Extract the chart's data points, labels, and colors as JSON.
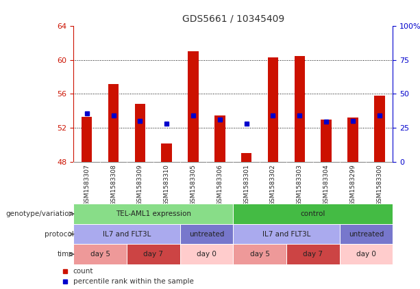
{
  "title": "GDS5661 / 10345409",
  "samples": [
    "GSM1583307",
    "GSM1583308",
    "GSM1583309",
    "GSM1583310",
    "GSM1583305",
    "GSM1583306",
    "GSM1583301",
    "GSM1583302",
    "GSM1583303",
    "GSM1583304",
    "GSM1583299",
    "GSM1583300"
  ],
  "count_values": [
    53.3,
    57.2,
    54.8,
    50.2,
    61.0,
    53.5,
    49.0,
    60.3,
    60.5,
    53.0,
    53.2,
    55.8
  ],
  "percentile_values": [
    53.7,
    53.5,
    52.8,
    52.5,
    53.5,
    53.0,
    52.5,
    53.5,
    53.5,
    52.7,
    52.8,
    53.5
  ],
  "ymin": 48,
  "ymax": 64,
  "yticks": [
    48,
    52,
    56,
    60,
    64
  ],
  "y2ticks": [
    0,
    25,
    50,
    75,
    100
  ],
  "y2tick_labels": [
    "0",
    "25",
    "50",
    "75",
    "100%"
  ],
  "bar_color": "#cc1100",
  "percentile_color": "#0000cc",
  "tick_color_left": "#cc1100",
  "tick_color_right": "#0000cc",
  "xtick_bg": "#cccccc",
  "genotype_groups": [
    {
      "label": "TEL-AML1 expression",
      "start": 0,
      "end": 6,
      "color": "#88dd88"
    },
    {
      "label": "control",
      "start": 6,
      "end": 12,
      "color": "#44bb44"
    }
  ],
  "protocol_groups": [
    {
      "label": "IL7 and FLT3L",
      "start": 0,
      "end": 4,
      "color": "#aaaaee"
    },
    {
      "label": "untreated",
      "start": 4,
      "end": 6,
      "color": "#7777cc"
    },
    {
      "label": "IL7 and FLT3L",
      "start": 6,
      "end": 10,
      "color": "#aaaaee"
    },
    {
      "label": "untreated",
      "start": 10,
      "end": 12,
      "color": "#7777cc"
    }
  ],
  "time_groups": [
    {
      "label": "day 5",
      "start": 0,
      "end": 2,
      "color": "#ee9999"
    },
    {
      "label": "day 7",
      "start": 2,
      "end": 4,
      "color": "#cc4444"
    },
    {
      "label": "day 0",
      "start": 4,
      "end": 6,
      "color": "#ffcccc"
    },
    {
      "label": "day 5",
      "start": 6,
      "end": 8,
      "color": "#ee9999"
    },
    {
      "label": "day 7",
      "start": 8,
      "end": 10,
      "color": "#cc4444"
    },
    {
      "label": "day 0",
      "start": 10,
      "end": 12,
      "color": "#ffcccc"
    }
  ],
  "row_labels": [
    "genotype/variation",
    "protocol",
    "time"
  ],
  "legend_items": [
    {
      "label": "count",
      "color": "#cc1100"
    },
    {
      "label": "percentile rank within the sample",
      "color": "#0000cc"
    }
  ]
}
